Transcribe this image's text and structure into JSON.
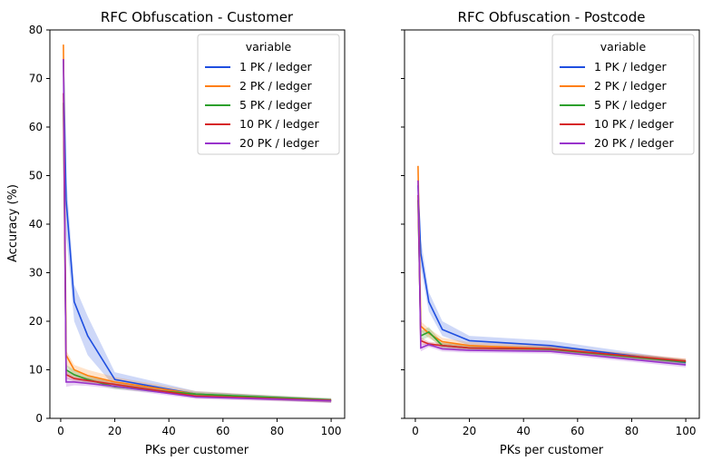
{
  "chart_data": [
    {
      "type": "line",
      "title": "RFC Obfuscation - Customer",
      "xlabel": "PKs per customer",
      "ylabel": "Accuracy (%)",
      "xlim": [
        -4,
        105
      ],
      "ylim": [
        0,
        80
      ],
      "xticks": [
        "0",
        "20",
        "40",
        "60",
        "80",
        "100"
      ],
      "yticks": [
        "0",
        "10",
        "20",
        "30",
        "40",
        "50",
        "60",
        "70",
        "80"
      ],
      "legend": {
        "title": "variable",
        "placement": "top-right"
      },
      "series": [
        {
          "name": "1 PK / ledger",
          "color": "#1f4fe0",
          "x": [
            1,
            2,
            5,
            10,
            20,
            50,
            100
          ],
          "y": [
            74,
            45,
            24,
            17,
            8,
            5,
            3.6
          ],
          "lo": [
            63,
            38,
            20,
            13,
            6.5,
            4.4,
            3.2
          ],
          "hi": [
            76,
            50,
            27.5,
            21,
            9.5,
            5.6,
            4.0
          ]
        },
        {
          "name": "2 PK / ledger",
          "color": "#ff7f0e",
          "x": [
            1,
            2,
            5,
            10,
            20,
            50,
            100
          ],
          "y": [
            77,
            13,
            10,
            8.8,
            7.5,
            5,
            3.6
          ],
          "lo": [
            70,
            11,
            8.8,
            7.8,
            6.8,
            4.4,
            3.2
          ],
          "hi": [
            77.5,
            14,
            11,
            10,
            8.5,
            5.6,
            4.0
          ]
        },
        {
          "name": "5 PK / ledger",
          "color": "#2ca02c",
          "x": [
            1,
            2,
            5,
            10,
            20,
            50,
            100
          ],
          "y": [
            65,
            10,
            9,
            8,
            6.5,
            5,
            3.8
          ],
          "lo": [
            62,
            9,
            8,
            7.3,
            6,
            4.6,
            3.4
          ],
          "hi": [
            68,
            11,
            10,
            8.8,
            7.2,
            5.4,
            4.2
          ]
        },
        {
          "name": "10 PK / ledger",
          "color": "#d62728",
          "x": [
            1,
            2,
            5,
            10,
            20,
            50,
            100
          ],
          "y": [
            67,
            9,
            8.2,
            7.8,
            7,
            4.6,
            3.7
          ],
          "lo": [
            65,
            8.2,
            7.6,
            7.2,
            6.5,
            4.2,
            3.3
          ],
          "hi": [
            69,
            9.8,
            8.8,
            8.4,
            7.5,
            5.0,
            4.1
          ]
        },
        {
          "name": "20 PK / ledger",
          "color": "#9933cc",
          "x": [
            1,
            2,
            5,
            10,
            20,
            50,
            100
          ],
          "y": [
            74,
            7.5,
            7.5,
            7.2,
            6.6,
            4.4,
            3.6
          ],
          "lo": [
            72,
            6.5,
            6.8,
            6.7,
            6.1,
            4.0,
            3.2
          ],
          "hi": [
            76,
            8.5,
            8.2,
            7.7,
            7.1,
            4.8,
            4.0
          ]
        }
      ]
    },
    {
      "type": "line",
      "title": "RFC Obfuscation - Postcode",
      "xlabel": "PKs per customer",
      "ylabel": "",
      "xlim": [
        -4,
        105
      ],
      "ylim": [
        0,
        80
      ],
      "xticks": [
        "0",
        "20",
        "40",
        "60",
        "80",
        "100"
      ],
      "yticks": [],
      "legend": {
        "title": "variable",
        "placement": "top-right"
      },
      "series": [
        {
          "name": "1 PK / ledger",
          "color": "#1f4fe0",
          "x": [
            1,
            2,
            5,
            10,
            20,
            50,
            100
          ],
          "y": [
            48,
            34,
            24,
            18.3,
            16,
            15,
            11.5
          ],
          "lo": [
            45,
            31,
            22,
            17,
            15,
            14,
            11
          ],
          "hi": [
            50,
            37,
            26,
            20,
            17,
            16,
            12
          ]
        },
        {
          "name": "2 PK / ledger",
          "color": "#ff7f0e",
          "x": [
            1,
            2,
            5,
            10,
            20,
            50,
            100
          ],
          "y": [
            52,
            19,
            17.5,
            15.8,
            15,
            14.3,
            11.8
          ],
          "lo": [
            49,
            18,
            16.5,
            15,
            14.3,
            13.6,
            11.3
          ],
          "hi": [
            53,
            20,
            18.5,
            16.6,
            15.7,
            15,
            12.3
          ]
        },
        {
          "name": "5 PK / ledger",
          "color": "#2ca02c",
          "x": [
            1,
            2,
            5,
            10,
            20,
            50,
            100
          ],
          "y": [
            45,
            17,
            17.8,
            15,
            14.5,
            14.2,
            11.6
          ],
          "lo": [
            43,
            16,
            16.8,
            14.4,
            14,
            13.7,
            11.1
          ],
          "hi": [
            47,
            18,
            18.8,
            15.6,
            15,
            14.7,
            12.1
          ]
        },
        {
          "name": "10 PK / ledger",
          "color": "#d62728",
          "x": [
            1,
            2,
            5,
            10,
            20,
            50,
            100
          ],
          "y": [
            46,
            16,
            15.3,
            15,
            14.5,
            14.3,
            11.8
          ],
          "lo": [
            44,
            15.3,
            14.8,
            14.5,
            14,
            13.8,
            11.3
          ],
          "hi": [
            48,
            16.7,
            15.8,
            15.5,
            15,
            14.8,
            12.3
          ]
        },
        {
          "name": "20 PK / ledger",
          "color": "#9933cc",
          "x": [
            1,
            2,
            5,
            10,
            20,
            50,
            100
          ],
          "y": [
            49,
            14.5,
            15.2,
            14.3,
            14,
            13.8,
            11
          ],
          "lo": [
            47,
            13.8,
            14.7,
            13.8,
            13.5,
            13.3,
            10.5
          ],
          "hi": [
            51,
            15.2,
            15.7,
            14.8,
            14.5,
            14.3,
            11.5
          ]
        }
      ]
    }
  ]
}
